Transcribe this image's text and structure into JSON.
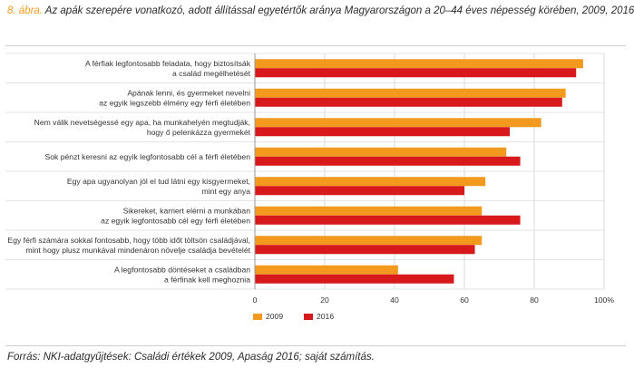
{
  "header": {
    "figure_number": "8. ábra.",
    "title": "Az apák szerepére vonatkozó, adott állítással egyetértők aránya Magyarországon a 20–44 éves népesség körében, 2009, 2016"
  },
  "source": "Forrás: NKI-adatgyűjtések: Családi értékek 2009, Apaság 2016; saját számítás.",
  "chart_data": {
    "type": "bar",
    "orientation": "horizontal",
    "categories": [
      [
        "A férfiak legfontosabb feladata, hogy biztosítsák",
        "a család megélhetését"
      ],
      [
        "Apának lenni, és gyermeket nevelni",
        "az egyik legszebb élmény egy férfi életében"
      ],
      [
        "Nem válik nevetségessé egy apa, ha munkahelyén megtudják,",
        "hogy ő pelenkázza gyermekét"
      ],
      [
        "Sok pénzt keresni az egyik legfontosabb cél a férfi életében"
      ],
      [
        "Egy apa ugyanolyan jól el tud látni egy kisgyermeket,",
        "mint egy anya"
      ],
      [
        "Sikereket, karriert elérni a munkában",
        "az egyik legfontosabb cél egy férfi életében"
      ],
      [
        "Egy férfi számára sokkal fontosabb, hogy több időt töltsön családjával,",
        "mint hogy plusz munkával mindenáron növelje családja bevételét"
      ],
      [
        "A legfontosabb döntéseket a családban",
        "a férfinak kell meghoznia"
      ]
    ],
    "series": [
      {
        "name": "2009",
        "color": "#f39a1e",
        "values": [
          94,
          89,
          82,
          72,
          66,
          65,
          65,
          41
        ]
      },
      {
        "name": "2016",
        "color": "#d7191c",
        "values": [
          92,
          88,
          73,
          76,
          60,
          76,
          63,
          57
        ]
      }
    ],
    "xlim": [
      0,
      100
    ],
    "xticks": [
      "0",
      "20",
      "40",
      "60",
      "80",
      "100%"
    ],
    "grid": true,
    "legend": "bottom"
  }
}
